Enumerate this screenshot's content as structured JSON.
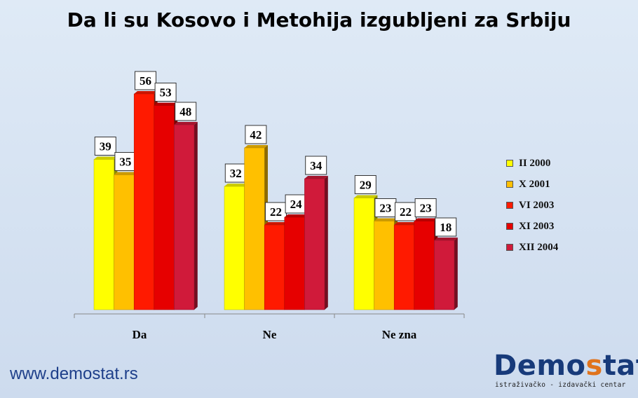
{
  "title": "Da li su Kosovo i Metohija izgubljeni za Srbiju",
  "website": "www.demostat.rs",
  "brand": {
    "name_part1": "Demo",
    "name_accent": "s",
    "name_part2": "tat",
    "tagline": "istraživačko - izdavački centar",
    "accent_color": "#e0731c",
    "primary_color": "#173a7a"
  },
  "chart_data": {
    "type": "bar",
    "categories": [
      "Da",
      "Ne",
      "Ne zna"
    ],
    "series": [
      {
        "name": "II 2000",
        "values": [
          39,
          32,
          29
        ],
        "color": "#ffff00"
      },
      {
        "name": "X 2001",
        "values": [
          35,
          42,
          23
        ],
        "color": "#ffc000"
      },
      {
        "name": "VI 2003",
        "values": [
          56,
          22,
          22
        ],
        "color": "#ff1a00"
      },
      {
        "name": "XI 2003",
        "values": [
          53,
          24,
          23
        ],
        "color": "#e60000"
      },
      {
        "name": "XII 2004",
        "values": [
          48,
          34,
          18
        ],
        "color": "#d01a3a"
      }
    ],
    "ylim": [
      0,
      56
    ],
    "legend": "right",
    "data_labels": true,
    "grid": false
  }
}
